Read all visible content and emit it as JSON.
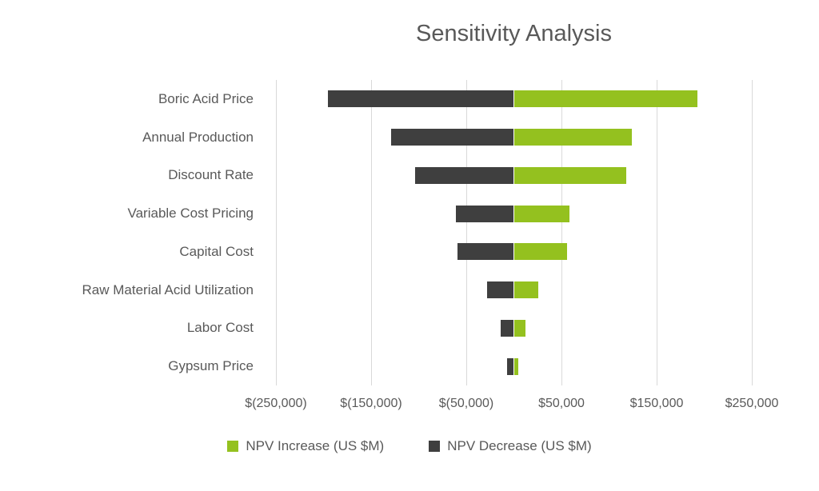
{
  "chart_data": {
    "type": "bar",
    "orientation": "horizontal",
    "title": "Sensitivity Analysis",
    "categories": [
      "Boric Acid Price",
      "Annual Production",
      "Discount Rate",
      "Variable Cost Pricing",
      "Capital Cost",
      "Raw Material Acid Utilization",
      "Labor Cost",
      "Gypsum Price"
    ],
    "series": [
      {
        "name": "NPV Increase (US $M)",
        "color": "#94C11F",
        "values": [
          193000,
          124000,
          118000,
          58000,
          56000,
          26000,
          12000,
          5000
        ]
      },
      {
        "name": "NPV Decrease (US $M)",
        "color": "#3F3F3F",
        "values": [
          -195000,
          -129000,
          -104000,
          -61000,
          -59000,
          -28000,
          -14000,
          -7000
        ]
      }
    ],
    "x_axis": {
      "min": -250000,
      "max": 250000,
      "tick_values": [
        -250000,
        -150000,
        -50000,
        50000,
        150000,
        250000
      ],
      "tick_labels": [
        "$(250,000)",
        "$(150,000)",
        "$(50,000)",
        "$50,000",
        "$150,000",
        "$250,000"
      ]
    },
    "grid": true,
    "legend_position": "bottom",
    "colors": {
      "background": "#FFFFFF",
      "gridline": "#D9D9D9",
      "text": "#595959"
    }
  }
}
